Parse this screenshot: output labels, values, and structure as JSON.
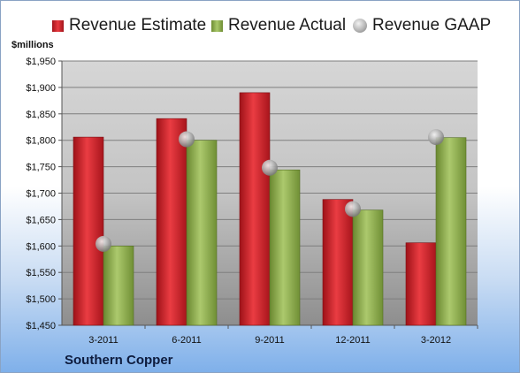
{
  "chart_data": {
    "type": "bar",
    "categories": [
      "3-2011",
      "6-2011",
      "9-2011",
      "12-2011",
      "3-2012"
    ],
    "series": [
      {
        "name": "Revenue Estimate",
        "type": "bar",
        "color": "#d42a30",
        "values": [
          1806,
          1841,
          1890,
          1688,
          1606
        ]
      },
      {
        "name": "Revenue Actual",
        "type": "bar",
        "color": "#8fae4f",
        "values": [
          1600,
          1800,
          1744,
          1668,
          1805
        ]
      },
      {
        "name": "Revenue GAAP",
        "type": "marker",
        "color": "#b0b0b0",
        "values": [
          1604,
          1802,
          1748,
          1670,
          1806
        ]
      }
    ],
    "ylabel": "$millions",
    "ylim": [
      1450,
      1950
    ],
    "yticks": [
      1450,
      1500,
      1550,
      1600,
      1650,
      1700,
      1750,
      1800,
      1850,
      1900,
      1950
    ],
    "ytick_labels": [
      "$1,450",
      "$1,500",
      "$1,550",
      "$1,600",
      "$1,650",
      "$1,700",
      "$1,750",
      "$1,800",
      "$1,850",
      "$1,900",
      "$1,950"
    ],
    "grid": true,
    "legend_position": "top"
  },
  "company": "Southern Copper"
}
